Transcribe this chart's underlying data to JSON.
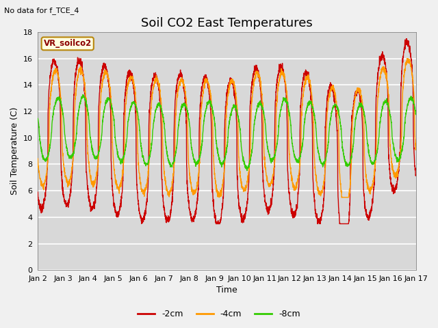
{
  "title": "Soil CO2 East Temperatures",
  "subtitle": "No data for f_TCE_4",
  "xlabel": "Time",
  "ylabel": "Soil Temperature (C)",
  "xlim": [
    0,
    15
  ],
  "ylim": [
    0,
    18
  ],
  "yticks": [
    0,
    2,
    4,
    6,
    8,
    10,
    12,
    14,
    16,
    18
  ],
  "xtick_labels": [
    "Jan 2",
    "Jan 3",
    "Jan 4",
    "Jan 5",
    "Jan 6",
    "Jan 7",
    "Jan 8",
    "Jan 9",
    "Jan 10",
    "Jan 11",
    "Jan 12",
    "Jan 13",
    "Jan 14",
    "Jan 15",
    "Jan 16",
    "Jan 17"
  ],
  "legend_label": "VR_soilco2",
  "legend_entries": [
    "-2cm",
    "-4cm",
    "-8cm"
  ],
  "color_2cm": "#cc0000",
  "color_4cm": "#ff9900",
  "color_8cm": "#33cc00",
  "plot_bg": "#d8d8d8",
  "fig_bg": "#f0f0f0",
  "title_fontsize": 13,
  "label_fontsize": 9,
  "tick_fontsize": 8
}
